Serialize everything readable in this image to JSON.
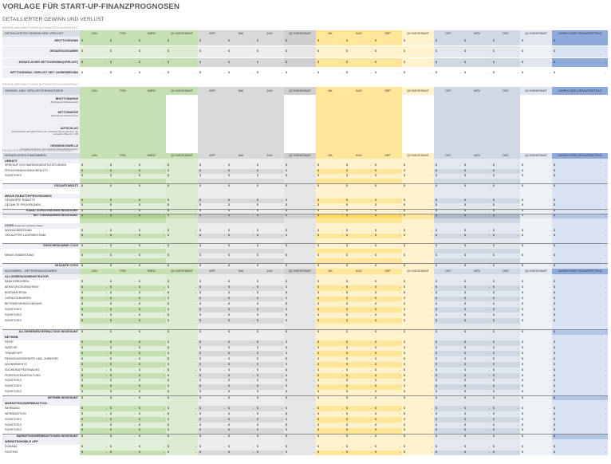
{
  "title": "VORLAGE FÜR START-UP-FINANZPROGNOSEN",
  "subtitle": "DETAILLIERTER GEWINN UND VERLUST",
  "auto_note": "DIESER ABSCHNITT WIRD AUTOMATISCH AUSGEFÜLLT",
  "detail_note": "DETAILLIERTE INFORMATIONEN UNTEN EINGEBEN",
  "months": [
    "JAN",
    "FEB",
    "MÄRZ",
    "Q1 INSGESAMT",
    "APR",
    "MAI",
    "JUN",
    "Q2 INSGESAMT",
    "JUL",
    "AUG",
    "SEP",
    "Q3 INSGESAMT",
    "OKT",
    "NOV",
    "DEZ",
    "Q4 INSGESAMT",
    "JÄHRLICHER GESAMTBETRAG"
  ],
  "summary": {
    "header": "DETAILLIERTER GEWINN UND VERLUST",
    "rows": [
      "BRUTTOGEWINN",
      "GESAMTAUSGABEN",
      "MONATLICHER NETTOGEWINN/(VERLUST)",
      "NETTOGEWINN / VERLUST SEIT JAHRESBEGINN"
    ]
  },
  "ratio": {
    "header": "GEWINN- UND VERLUSTVERHÄLTNISSE",
    "rows": [
      {
        "label": "BRUTTOMARGE",
        "sub": "(Bruttogewinn/Nettoumsatz)"
      },
      {
        "label": "NETTOMARGE",
        "sub": "(Nettogewinn/Nettoumsatz)"
      },
      {
        "label": "AUFSCHLAG",
        "sub": "((Nettoumsatz abzüglich Kosten der verkauften Waren)/(Kosten der verkauften Waren)) x 100"
      },
      {
        "label": "GEWINNSCHWELLE",
        "sub": "(Ausgaben/(1-Kosten der verkauften Waren/Nettoumsatz))"
      }
    ]
  },
  "income": {
    "header": "MONATLICHES EINKOMMEN",
    "rows": [
      {
        "t": "sec",
        "label": "UMSATZ"
      },
      {
        "t": "in",
        "label": "VERKAUF VON WAREN/DIENSTLEISTUNGEN"
      },
      {
        "t": "in",
        "label": "PROVISIONEN/GEBÜHREN ETC."
      },
      {
        "t": "in",
        "label": "SONSTIGES"
      },
      {
        "t": "blank"
      },
      {
        "t": "sub",
        "label": "GESAMTUMSATZ"
      },
      {
        "t": "blank"
      },
      {
        "t": "sec",
        "label": "MINUS RABATTE/PROVISIONEN"
      },
      {
        "t": "in",
        "label": "GEWÄHRTE RABATTE"
      },
      {
        "t": "in",
        "label": "GEZAHLTE PROVISIONEN"
      },
      {
        "t": "sub",
        "label": "RABATTE/PROVISIONEN INSGESAMT"
      },
      {
        "t": "subg",
        "label": "NETTOEINNAHMEN INSGESAMT"
      },
      {
        "t": "blank"
      },
      {
        "t": "sec",
        "label": "COGS",
        "extra": "Kosten der verkauften Waren"
      },
      {
        "t": "in",
        "label": "ANFANGSBESTAND"
      },
      {
        "t": "in",
        "label": "GEKAUFTER LAGERBESTAND"
      },
      {
        "t": "blank"
      },
      {
        "t": "sub",
        "label": "ZWISCHENSUMME COGS"
      },
      {
        "t": "blank"
      },
      {
        "t": "in",
        "label": "MINUS ENDBESTAND"
      },
      {
        "t": "blank"
      },
      {
        "t": "sub",
        "label": "GESAMTE COGS"
      },
      {
        "t": "subg",
        "label": "BRUTTOGEWINN"
      }
    ]
  },
  "expenses": {
    "header": "AUSGABEN – BETRIEBSAUSGABEN",
    "rows": [
      {
        "t": "sec",
        "label": "ALLGEMEIN/ADMINISTRATOR"
      },
      {
        "t": "in",
        "label": "BANKGEBÜHREN"
      },
      {
        "t": "in",
        "label": "BERATUNGSGEBÜHREN"
      },
      {
        "t": "in",
        "label": "BÜROMATERIAL"
      },
      {
        "t": "in",
        "label": "LIZENZGEBÜHREN"
      },
      {
        "t": "in",
        "label": "BETRIEBSVERSICHERUNG"
      },
      {
        "t": "in",
        "label": "SONSTIGES"
      },
      {
        "t": "in",
        "label": "SONSTIGES"
      },
      {
        "t": "in",
        "label": "SONSTIGES"
      },
      {
        "t": "blank"
      },
      {
        "t": "subb",
        "label": "ALLGEMEINES/VERWALTUNG INSGESAMT"
      },
      {
        "t": "sec",
        "label": "BETRIEB"
      },
      {
        "t": "in",
        "label": "REISE"
      },
      {
        "t": "in",
        "label": "WÄSCHE"
      },
      {
        "t": "in",
        "label": "TRANSPORT"
      },
      {
        "t": "in",
        "label": "REINIGUNGSDIENSTE UND -ZUBEHÖR"
      },
      {
        "t": "in",
        "label": "ABONNEMENTS"
      },
      {
        "t": "in",
        "label": "KÜCHE/KAFFEE/SNACKS"
      },
      {
        "t": "in",
        "label": "FEIERS/VERANSTALTUNG"
      },
      {
        "t": "in",
        "label": "SONSTIGES"
      },
      {
        "t": "in",
        "label": "SONSTIGES"
      },
      {
        "t": "in",
        "label": "SONSTIGES"
      },
      {
        "t": "subb",
        "label": "BETRIEB INSGESAMT"
      },
      {
        "t": "sec",
        "label": "MARKETING/WERBEAKTION"
      },
      {
        "t": "in",
        "label": "WERBUNG"
      },
      {
        "t": "in",
        "label": "WERBEAKTION"
      },
      {
        "t": "in",
        "label": "SONSTIGES"
      },
      {
        "t": "in",
        "label": "SONSTIGES"
      },
      {
        "t": "in",
        "label": "SONSTIGES"
      },
      {
        "t": "subb",
        "label": "MARKETING/WERBEAKTIONEN INSGESAMT"
      },
      {
        "t": "sec",
        "label": "WEBSITE/MOBILE APP"
      },
      {
        "t": "in",
        "label": "DOMÄNE"
      },
      {
        "t": "in",
        "label": "HOSTING"
      }
    ]
  },
  "symbols": {
    "currency": "$",
    "dash": "-"
  },
  "colors": {
    "month_green": "#c6e0b4",
    "month_gray": "#d9d9d9",
    "month_yellow": "#ffe699",
    "month_blue": "#d0d8e4",
    "annual_blue": "#8ea9db"
  }
}
